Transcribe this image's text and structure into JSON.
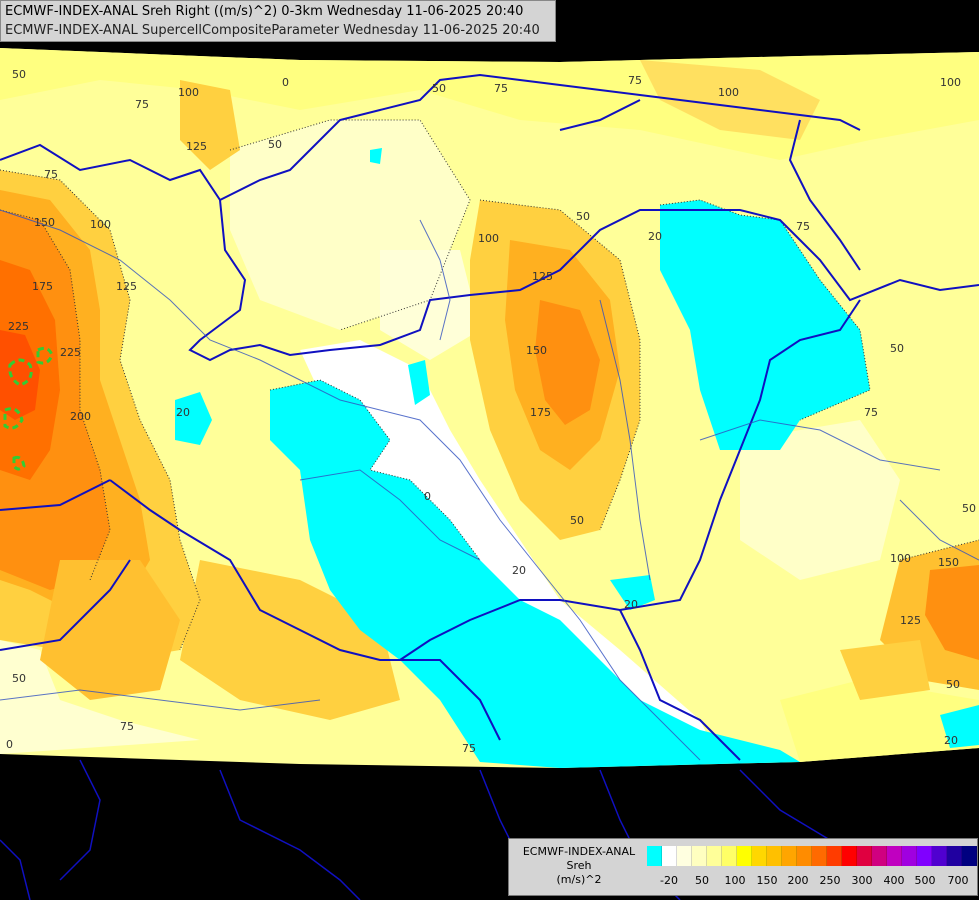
{
  "titles": {
    "line1": "ECMWF-INDEX-ANAL Sreh Right ((m/s)^2) 0-3km Wednesday 11-06-2025 20:40",
    "line2": "ECMWF-INDEX-ANAL SupercellCompositeParameter Wednesday 11-06-2025 20:40"
  },
  "legend": {
    "title1": "ECMWF-INDEX-ANAL",
    "title2": "Sreh",
    "title3": "(m/s)^2",
    "colors": [
      "#00ffff",
      "#ffffff",
      "#ffffe0",
      "#ffffc0",
      "#ffff99",
      "#ffff66",
      "#ffff00",
      "#ffd700",
      "#ffc000",
      "#ffa500",
      "#ff8c00",
      "#ff6a00",
      "#ff3c00",
      "#ff0000",
      "#e00040",
      "#d00080",
      "#c000c0",
      "#a000e0",
      "#8000ff",
      "#5000d0",
      "#2000a0",
      "#000080"
    ],
    "ticks": [
      "-20",
      "50",
      "100",
      "150",
      "200",
      "250",
      "300",
      "400",
      "500",
      "700"
    ]
  },
  "contour_labels": [
    "50",
    "75",
    "100",
    "125",
    "50",
    "0",
    "50",
    "75",
    "75",
    "100",
    "100",
    "75",
    "150",
    "100",
    "175",
    "125",
    "225",
    "225",
    "200",
    "50",
    "20",
    "100",
    "125",
    "50",
    "20",
    "75",
    "150",
    "175",
    "0",
    "50",
    "20",
    "50",
    "75",
    "75",
    "100",
    "150",
    "125",
    "50",
    "20",
    "50",
    "20",
    "75",
    "0"
  ]
}
